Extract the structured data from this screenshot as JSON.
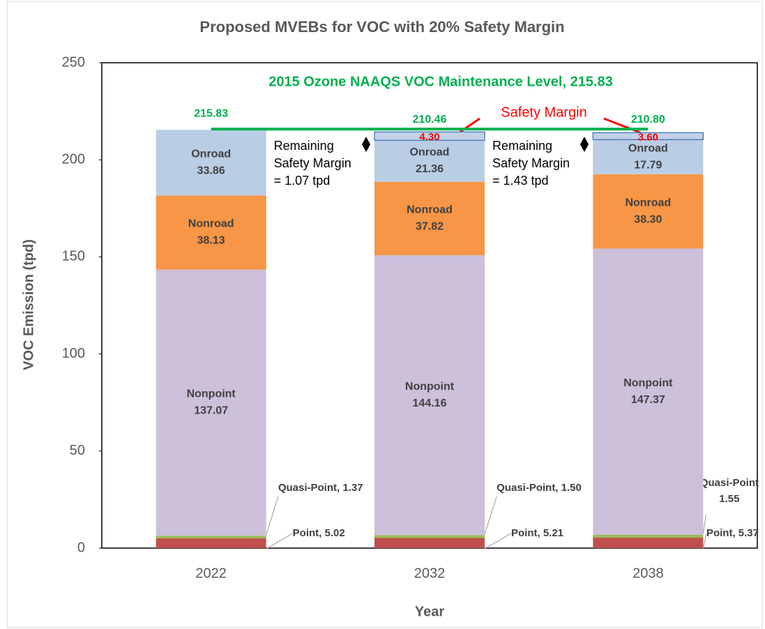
{
  "chart_data": {
    "type": "stacked_bar",
    "title": "Proposed MVEBs for VOC with 20% Safety Margin",
    "xlabel": "Year",
    "ylabel": "VOC Emission (tpd)",
    "categories": [
      "2022",
      "2032",
      "2038"
    ],
    "series": [
      {
        "name": "Point",
        "color": "#c0504d",
        "values": [
          5.02,
          5.21,
          5.37
        ],
        "value_labels": [
          "Point, 5.02",
          "Point, 5.21",
          "Point, 5.37"
        ]
      },
      {
        "name": "Quasi-Point",
        "color": "#9bbb59",
        "values": [
          1.37,
          1.5,
          1.55
        ],
        "value_labels": [
          "Quasi-Point, 1.37",
          "Quasi-Point, 1.50",
          "Quasi-Point\n1.55"
        ]
      },
      {
        "name": "Nonpoint",
        "color": "#ccc0da",
        "values": [
          137.07,
          144.16,
          147.37
        ]
      },
      {
        "name": "Nonroad",
        "color": "#f79646",
        "values": [
          38.13,
          37.82,
          38.3
        ],
        "value_labels": [
          "38.13",
          "37.82",
          "38.30"
        ]
      },
      {
        "name": "Onroad",
        "color": "#b9cde5",
        "values": [
          33.86,
          21.36,
          17.79
        ]
      },
      {
        "name": "Safety Margin",
        "color": "#dbe5f1",
        "values": [
          null,
          4.3,
          3.6
        ],
        "value_labels": [
          null,
          "4.30",
          "3.60"
        ]
      }
    ],
    "totals": {
      "values": [
        215.83,
        210.46,
        210.8
      ],
      "value_labels": [
        "215.83",
        "210.46",
        "210.80"
      ],
      "color": "#00b050"
    },
    "reference_line": {
      "label": "2015 Ozone NAAQS VOC Maintenance Level, 215.83",
      "value": 215.83,
      "color": "#00b050"
    },
    "annotations": [
      {
        "lines": [
          "Remaining",
          "Safety Margin",
          "= 1.07 tpd"
        ]
      },
      {
        "lines": [
          "Remaining",
          "Safety Margin",
          "= 1.43 tpd"
        ]
      }
    ],
    "ylim": [
      0,
      250
    ],
    "yticks": [
      0,
      50,
      100,
      150,
      200,
      250
    ],
    "grid": false
  }
}
